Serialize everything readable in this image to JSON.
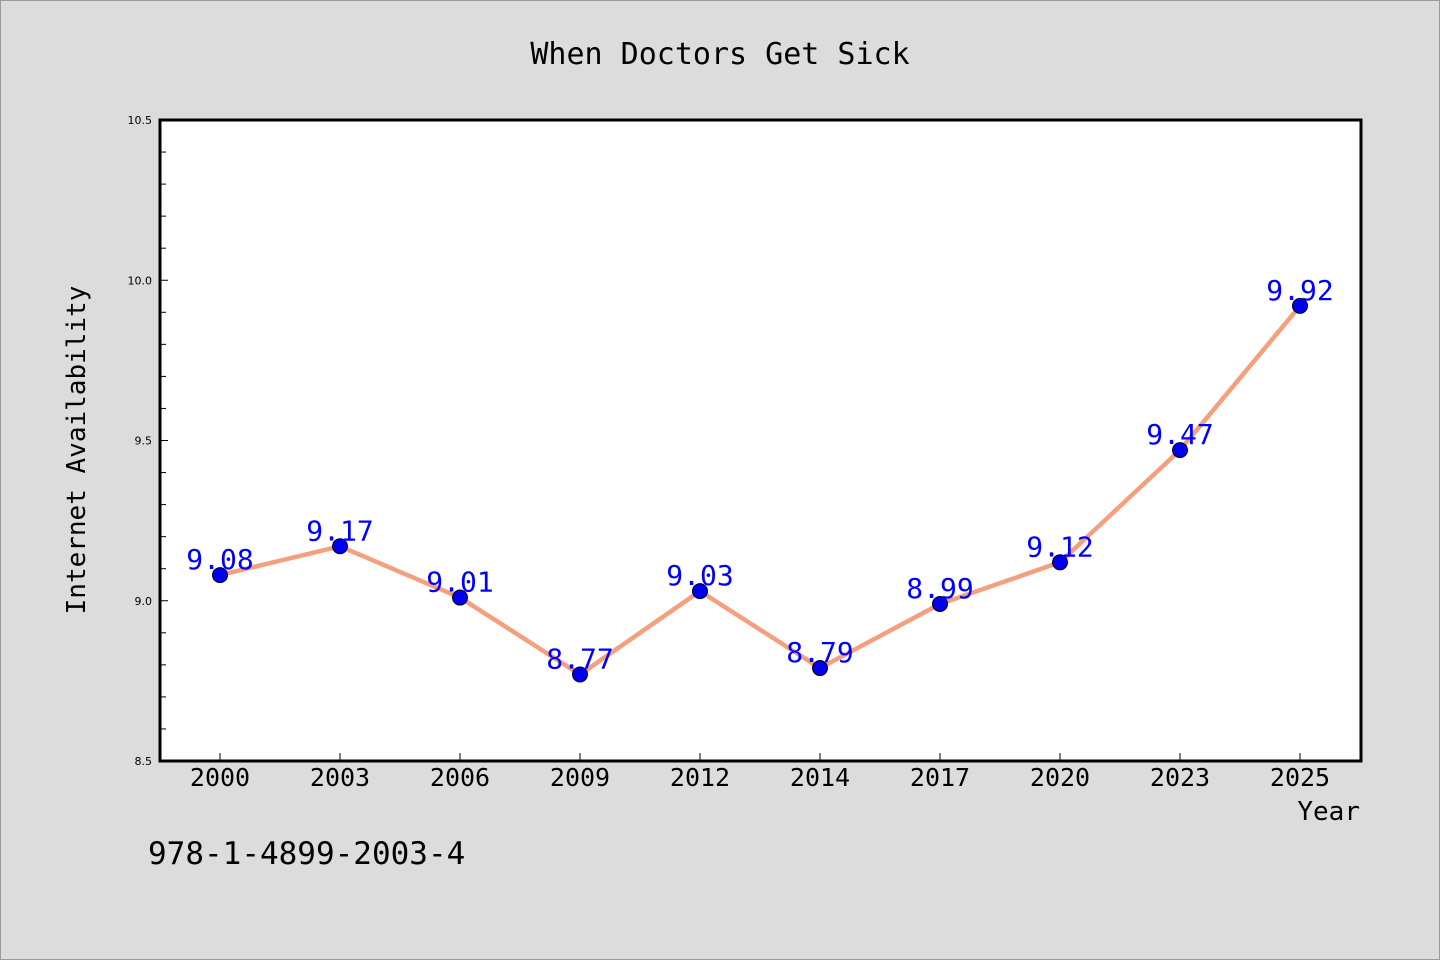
{
  "chart_data": {
    "type": "line",
    "title": "When Doctors Get Sick",
    "xlabel": "Year",
    "ylabel": "Internet Availability",
    "categories": [
      "2000",
      "2003",
      "2006",
      "2009",
      "2012",
      "2014",
      "2017",
      "2020",
      "2023",
      "2025"
    ],
    "series": [
      {
        "values": [
          9.08,
          9.17,
          9.01,
          8.77,
          9.03,
          8.79,
          8.99,
          9.12,
          9.47,
          9.92
        ],
        "labels": [
          "9.08",
          "9.17",
          "9.01",
          "8.77",
          "9.03",
          "8.79",
          "8.99",
          "9.12",
          "9.47",
          "9.92"
        ]
      }
    ],
    "ylim": [
      8.5,
      10.5
    ],
    "yticks": [
      "8.5",
      "9.0",
      "9.5",
      "10.0",
      "10.5"
    ],
    "grid": false,
    "colors": {
      "line": "#f4a07e",
      "marker": "#0000ee",
      "label": "#0000ff",
      "background": "#dcdcdc",
      "plot_background": "#ffffff"
    }
  },
  "footer": {
    "isbn": "978-1-4899-2003-4"
  }
}
